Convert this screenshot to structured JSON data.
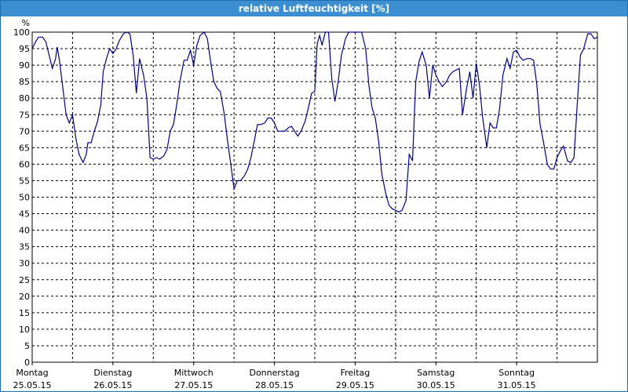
{
  "window": {
    "title": "relative Luftfeuchtigkeit [%]"
  },
  "colors": {
    "titlebar": "#3b8fd1",
    "line": "#00008b",
    "grid": "#000000"
  },
  "chart_data": {
    "type": "line",
    "title": "relative Luftfeuchtigkeit [%]",
    "ylabel": "%",
    "xlabel": "",
    "ylim": [
      0,
      100
    ],
    "yticks": [
      0,
      5,
      10,
      15,
      20,
      25,
      30,
      35,
      40,
      45,
      50,
      55,
      60,
      65,
      70,
      75,
      80,
      85,
      90,
      95,
      100
    ],
    "xlim": [
      0,
      7
    ],
    "xticks": [
      {
        "day": "Montag",
        "date": "25.05.15"
      },
      {
        "day": "Dienstag",
        "date": "26.05.15"
      },
      {
        "day": "Mittwoch",
        "date": "27.05.15"
      },
      {
        "day": "Donnerstag",
        "date": "28.05.15"
      },
      {
        "day": "Freitag",
        "date": "29.05.15"
      },
      {
        "day": "Samstag",
        "date": "30.05.15"
      },
      {
        "day": "Sonntag",
        "date": "31.05.15"
      }
    ],
    "grid": true,
    "series": [
      {
        "points": [
          [
            0.0,
            95
          ],
          [
            0.04,
            97
          ],
          [
            0.08,
            98.5
          ],
          [
            0.13,
            98.5
          ],
          [
            0.17,
            97
          ],
          [
            0.21,
            93
          ],
          [
            0.25,
            89
          ],
          [
            0.29,
            92
          ],
          [
            0.31,
            95.5
          ],
          [
            0.34,
            91
          ],
          [
            0.38,
            83
          ],
          [
            0.42,
            75
          ],
          [
            0.46,
            72.5
          ],
          [
            0.5,
            75
          ],
          [
            0.54,
            68
          ],
          [
            0.58,
            63
          ],
          [
            0.63,
            60.5
          ],
          [
            0.67,
            63
          ],
          [
            0.69,
            66.5
          ],
          [
            0.73,
            66.5
          ],
          [
            0.77,
            70
          ],
          [
            0.81,
            73
          ],
          [
            0.85,
            78
          ],
          [
            0.88,
            88
          ],
          [
            0.92,
            92
          ],
          [
            0.96,
            95
          ],
          [
            1.0,
            93.5
          ],
          [
            1.04,
            95
          ],
          [
            1.08,
            97.5
          ],
          [
            1.13,
            99.5
          ],
          [
            1.17,
            100
          ],
          [
            1.21,
            99.5
          ],
          [
            1.25,
            93
          ],
          [
            1.29,
            81.5
          ],
          [
            1.33,
            92
          ],
          [
            1.38,
            87
          ],
          [
            1.42,
            80
          ],
          [
            1.46,
            62
          ],
          [
            1.5,
            61.5
          ],
          [
            1.54,
            62
          ],
          [
            1.58,
            61.5
          ],
          [
            1.63,
            62.5
          ],
          [
            1.67,
            64.5
          ],
          [
            1.71,
            70
          ],
          [
            1.75,
            72
          ],
          [
            1.79,
            78
          ],
          [
            1.83,
            85
          ],
          [
            1.88,
            91.5
          ],
          [
            1.92,
            91.5
          ],
          [
            1.96,
            94.5
          ],
          [
            2.0,
            90
          ],
          [
            2.04,
            96
          ],
          [
            2.08,
            99
          ],
          [
            2.13,
            100
          ],
          [
            2.17,
            98
          ],
          [
            2.21,
            91
          ],
          [
            2.25,
            85
          ],
          [
            2.29,
            83
          ],
          [
            2.33,
            82
          ],
          [
            2.38,
            75
          ],
          [
            2.42,
            67
          ],
          [
            2.46,
            60
          ],
          [
            2.5,
            52.5
          ],
          [
            2.54,
            55
          ],
          [
            2.58,
            55
          ],
          [
            2.63,
            56.5
          ],
          [
            2.67,
            58.5
          ],
          [
            2.71,
            62
          ],
          [
            2.75,
            67
          ],
          [
            2.79,
            72
          ],
          [
            2.83,
            72
          ],
          [
            2.88,
            72.5
          ],
          [
            2.92,
            74
          ],
          [
            2.96,
            74
          ],
          [
            3.0,
            72.5
          ],
          [
            3.04,
            70
          ],
          [
            3.08,
            70
          ],
          [
            3.13,
            70
          ],
          [
            3.17,
            71
          ],
          [
            3.21,
            71.5
          ],
          [
            3.25,
            70
          ],
          [
            3.29,
            68.5
          ],
          [
            3.33,
            70
          ],
          [
            3.38,
            73
          ],
          [
            3.42,
            77
          ],
          [
            3.46,
            81.5
          ],
          [
            3.5,
            82
          ],
          [
            3.53,
            96.5
          ],
          [
            3.56,
            99
          ],
          [
            3.59,
            96
          ],
          [
            3.63,
            100
          ],
          [
            3.67,
            100
          ],
          [
            3.71,
            86
          ],
          [
            3.75,
            79
          ],
          [
            3.79,
            85
          ],
          [
            3.83,
            93
          ],
          [
            3.88,
            98
          ],
          [
            3.92,
            100
          ],
          [
            3.96,
            100
          ],
          [
            4.0,
            100
          ],
          [
            4.04,
            100
          ],
          [
            4.08,
            100
          ],
          [
            4.13,
            95
          ],
          [
            4.17,
            84
          ],
          [
            4.21,
            77
          ],
          [
            4.25,
            74
          ],
          [
            4.29,
            67
          ],
          [
            4.33,
            57
          ],
          [
            4.38,
            51
          ],
          [
            4.42,
            47.5
          ],
          [
            4.46,
            46.5
          ],
          [
            4.5,
            46
          ],
          [
            4.54,
            45.5
          ],
          [
            4.58,
            46
          ],
          [
            4.63,
            49
          ],
          [
            4.67,
            63
          ],
          [
            4.71,
            61
          ],
          [
            4.75,
            85
          ],
          [
            4.79,
            91
          ],
          [
            4.83,
            94
          ],
          [
            4.88,
            90
          ],
          [
            4.92,
            80
          ],
          [
            4.96,
            90
          ],
          [
            5.0,
            87
          ],
          [
            5.04,
            85
          ],
          [
            5.08,
            83.5
          ],
          [
            5.13,
            85
          ],
          [
            5.17,
            87
          ],
          [
            5.21,
            88
          ],
          [
            5.25,
            88.5
          ],
          [
            5.29,
            89
          ],
          [
            5.33,
            75
          ],
          [
            5.38,
            83
          ],
          [
            5.42,
            88
          ],
          [
            5.46,
            80
          ],
          [
            5.5,
            90.5
          ],
          [
            5.54,
            84
          ],
          [
            5.58,
            74
          ],
          [
            5.63,
            65
          ],
          [
            5.67,
            72.5
          ],
          [
            5.71,
            71
          ],
          [
            5.75,
            71
          ],
          [
            5.79,
            77
          ],
          [
            5.83,
            87
          ],
          [
            5.88,
            92
          ],
          [
            5.92,
            89
          ],
          [
            5.96,
            94
          ],
          [
            6.0,
            94.5
          ],
          [
            6.04,
            92.5
          ],
          [
            6.08,
            91.5
          ],
          [
            6.13,
            92
          ],
          [
            6.17,
            92
          ],
          [
            6.21,
            91.5
          ],
          [
            6.25,
            84
          ],
          [
            6.29,
            72
          ],
          [
            6.33,
            67
          ],
          [
            6.38,
            60
          ],
          [
            6.42,
            58.5
          ],
          [
            6.46,
            58.5
          ],
          [
            6.5,
            62
          ],
          [
            6.54,
            64
          ],
          [
            6.58,
            65.5
          ],
          [
            6.63,
            61
          ],
          [
            6.67,
            60.5
          ],
          [
            6.71,
            62
          ],
          [
            6.75,
            78
          ],
          [
            6.79,
            93
          ],
          [
            6.83,
            95
          ],
          [
            6.88,
            99.5
          ],
          [
            6.92,
            99.5
          ],
          [
            6.96,
            98
          ],
          [
            7.0,
            98.5
          ]
        ]
      }
    ]
  }
}
